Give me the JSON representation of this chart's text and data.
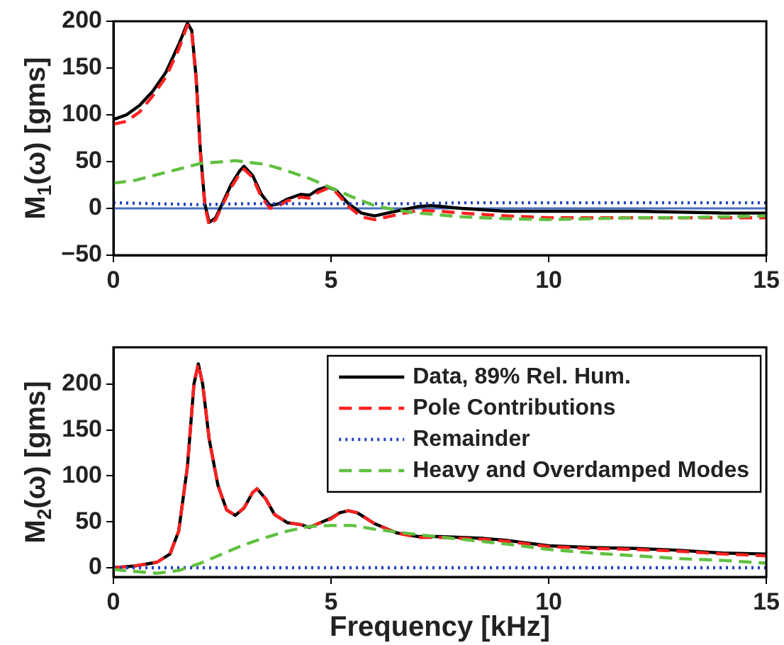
{
  "chart_data": [
    {
      "type": "line",
      "ylabel": "M$_{1}$(ω) [gms]",
      "xlim": [
        0,
        15
      ],
      "xticks": [
        0,
        5,
        10,
        15
      ],
      "ylim": [
        -50,
        200
      ],
      "yticks": [
        -50,
        0,
        50,
        100,
        150,
        200
      ],
      "grid": false,
      "legend": false,
      "ref_lines": [
        {
          "axis": "y",
          "value": 0,
          "color": "#4a6fc2",
          "line_style": "solid"
        }
      ],
      "series": [
        {
          "color": "#000000",
          "line_style": "solid",
          "x": [
            0,
            0.3,
            0.6,
            0.9,
            1.2,
            1.5,
            1.7,
            1.8,
            1.9,
            2.0,
            2.1,
            2.2,
            2.35,
            2.5,
            2.7,
            2.9,
            3.0,
            3.2,
            3.4,
            3.6,
            3.8,
            4.0,
            4.3,
            4.5,
            4.7,
            4.9,
            5.1,
            5.4,
            5.7,
            6.0,
            6.5,
            7.0,
            7.3,
            8,
            9,
            10,
            11,
            12,
            13,
            14,
            15
          ],
          "values": [
            95,
            100,
            110,
            125,
            145,
            175,
            198,
            190,
            140,
            60,
            5,
            -15,
            -10,
            5,
            25,
            40,
            45,
            35,
            15,
            3,
            5,
            10,
            15,
            14,
            20,
            23,
            20,
            5,
            -5,
            -8,
            -3,
            2,
            3,
            0,
            -3,
            -3,
            -3,
            -3,
            -4,
            -5,
            -5
          ]
        },
        {
          "color": "#ff2020",
          "line_style": "dashed",
          "x": [
            0,
            0.3,
            0.6,
            0.9,
            1.2,
            1.5,
            1.7,
            1.8,
            1.9,
            2.0,
            2.1,
            2.2,
            2.35,
            2.5,
            2.7,
            2.9,
            3.0,
            3.2,
            3.4,
            3.6,
            3.8,
            4.0,
            4.3,
            4.5,
            4.7,
            4.9,
            5.1,
            5.4,
            5.7,
            6.0,
            6.5,
            7.0,
            7.5,
            8,
            9,
            10,
            11,
            12,
            13,
            14,
            15
          ],
          "values": [
            90,
            93,
            103,
            120,
            140,
            170,
            196,
            188,
            138,
            58,
            3,
            -18,
            -12,
            3,
            22,
            37,
            42,
            33,
            12,
            0,
            3,
            8,
            12,
            11,
            17,
            21,
            18,
            2,
            -9,
            -12,
            -7,
            -2,
            -3,
            -5,
            -8,
            -10,
            -10,
            -10,
            -10,
            -10,
            -10
          ]
        },
        {
          "color": "#2040c0",
          "line_style": "dotted",
          "x": [
            0,
            1,
            2,
            3,
            4,
            5,
            6,
            7,
            8,
            9,
            10,
            11,
            12,
            13,
            14,
            15
          ],
          "values": [
            6,
            5,
            4,
            5,
            5,
            5,
            5,
            5,
            6,
            6,
            6,
            6,
            6,
            6,
            6,
            6
          ]
        },
        {
          "color": "#60c040",
          "line_style": "dashed",
          "x": [
            0,
            0.5,
            1,
            1.5,
            2,
            2.8,
            3.5,
            4,
            4.5,
            5,
            5.5,
            6,
            6.5,
            7,
            8,
            9,
            10,
            11,
            12,
            13,
            14,
            15
          ],
          "values": [
            27,
            30,
            36,
            42,
            48,
            51,
            47,
            40,
            32,
            22,
            12,
            3,
            -2,
            -5,
            -9,
            -11,
            -12,
            -11,
            -10,
            -10,
            -9,
            -8
          ]
        }
      ]
    },
    {
      "type": "line",
      "xlabel": "Frequency [kHz]",
      "ylabel": "M$_{2}$(ω) [gms]",
      "xlim": [
        0,
        15
      ],
      "xticks": [
        0,
        5,
        10,
        15
      ],
      "ylim": [
        -10,
        240
      ],
      "yticks": [
        0,
        50,
        100,
        150,
        200
      ],
      "grid": false,
      "legend": "top right",
      "series": [
        {
          "name": "Data, 89% Rel. Hum.",
          "color": "#000000",
          "line_style": "solid",
          "x": [
            0,
            0.5,
            1,
            1.3,
            1.5,
            1.7,
            1.85,
            1.95,
            2.05,
            2.2,
            2.4,
            2.6,
            2.8,
            3.0,
            3.2,
            3.3,
            3.5,
            3.7,
            4.0,
            4.3,
            4.5,
            4.8,
            5.0,
            5.2,
            5.4,
            5.6,
            6.0,
            6.5,
            7,
            7.5,
            8,
            8.5,
            9,
            10,
            11,
            12,
            13,
            14,
            15
          ],
          "values": [
            0,
            2,
            6,
            15,
            40,
            110,
            200,
            222,
            200,
            140,
            90,
            63,
            57,
            65,
            82,
            86,
            75,
            58,
            49,
            47,
            44,
            50,
            54,
            60,
            62,
            60,
            48,
            38,
            34,
            34,
            33,
            32,
            30,
            24,
            22,
            21,
            19,
            16,
            15
          ]
        },
        {
          "name": "Pole Contributions",
          "color": "#ff2020",
          "line_style": "dashed",
          "x": [
            0,
            0.5,
            1,
            1.3,
            1.5,
            1.7,
            1.85,
            1.95,
            2.05,
            2.2,
            2.4,
            2.6,
            2.8,
            3.0,
            3.2,
            3.3,
            3.5,
            3.7,
            4.0,
            4.3,
            4.5,
            4.8,
            5.0,
            5.2,
            5.4,
            5.6,
            6.0,
            6.5,
            7,
            7.5,
            8,
            8.5,
            9,
            10,
            11,
            12,
            13,
            14,
            15
          ],
          "values": [
            0,
            2,
            6,
            15,
            40,
            110,
            200,
            222,
            200,
            140,
            90,
            63,
            57,
            65,
            82,
            86,
            75,
            58,
            49,
            47,
            44,
            50,
            53,
            60,
            62,
            60,
            48,
            38,
            33,
            33,
            32,
            31,
            29,
            23,
            21,
            20,
            18,
            15,
            13
          ]
        },
        {
          "name": "Remainder",
          "color": "#2040c0",
          "line_style": "dotted",
          "x": [
            0,
            3,
            6,
            9,
            12,
            15
          ],
          "values": [
            0,
            0,
            0,
            0,
            0,
            0
          ]
        },
        {
          "name": "Heavy and Overdamped Modes",
          "color": "#60c040",
          "line_style": "dashed",
          "x": [
            0,
            0.5,
            1,
            1.5,
            2,
            2.5,
            3,
            3.5,
            4,
            4.5,
            5,
            5.5,
            6,
            7,
            8,
            9,
            10,
            11,
            12,
            13,
            14,
            15
          ],
          "values": [
            -2,
            -4,
            -6,
            -3,
            5,
            15,
            25,
            33,
            40,
            45,
            46,
            46,
            42,
            36,
            31,
            26,
            20,
            16,
            13,
            10,
            8,
            5
          ]
        }
      ]
    }
  ]
}
